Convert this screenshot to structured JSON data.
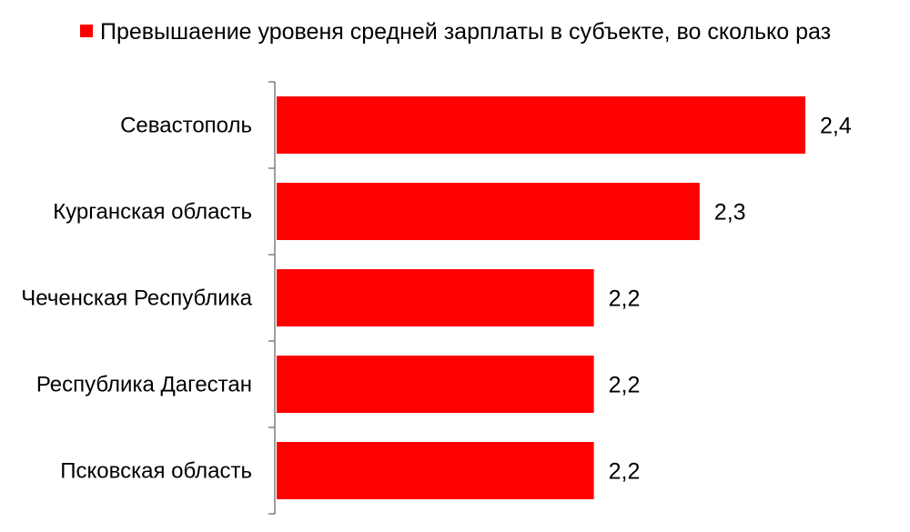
{
  "chart_data": {
    "type": "bar",
    "orientation": "horizontal",
    "categories": [
      "Севастополь",
      "Курганская область",
      "Чеченская Республика",
      "Республика Дагестан",
      "Псковская область"
    ],
    "series": [
      {
        "name": "Превышаение уровеня средней зарплаты в субъекте, во сколько раз",
        "values": [
          2.4,
          2.3,
          2.2,
          2.2,
          2.2
        ],
        "value_labels": [
          "2,4",
          "2,3",
          "2,2",
          "2,2",
          "2,2"
        ],
        "color": "#ff0000"
      }
    ],
    "xlim": [
      1.9,
      2.4
    ],
    "legend_position": "top",
    "grid": false
  }
}
